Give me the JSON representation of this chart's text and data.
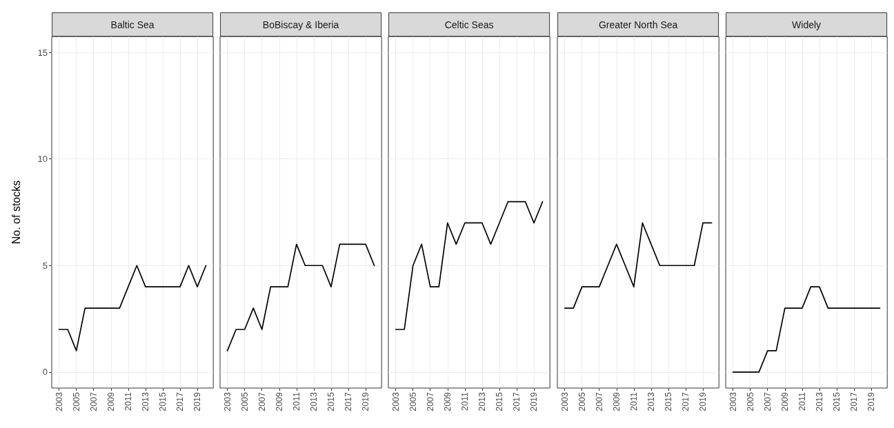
{
  "chart_data": [
    {
      "type": "line",
      "title": "Baltic Sea",
      "ylabel": "No. of stocks",
      "x": [
        2003,
        2004,
        2005,
        2006,
        2007,
        2008,
        2009,
        2010,
        2011,
        2012,
        2013,
        2014,
        2015,
        2016,
        2017,
        2018,
        2019,
        2020
      ],
      "values": [
        2,
        2,
        1,
        3,
        3,
        3,
        3,
        3,
        4,
        5,
        4,
        4,
        4,
        4,
        4,
        5,
        4,
        5
      ],
      "color": "#000000",
      "xlim": [
        2002.15,
        2020.85
      ],
      "xticks": [
        2003,
        2005,
        2007,
        2009,
        2011,
        2013,
        2015,
        2017,
        2019
      ],
      "ylim": [
        -0.75,
        15.75
      ],
      "yticks": [
        0,
        5,
        10,
        15
      ],
      "grid": true,
      "marker": "none"
    },
    {
      "type": "line",
      "title": "BoBiscay & Iberia",
      "x": [
        2003,
        2004,
        2005,
        2006,
        2007,
        2008,
        2009,
        2010,
        2011,
        2012,
        2013,
        2014,
        2015,
        2016,
        2017,
        2018,
        2019,
        2020
      ],
      "values": [
        1,
        2,
        2,
        3,
        2,
        4,
        4,
        4,
        6,
        5,
        5,
        5,
        4,
        6,
        6,
        6,
        6,
        5
      ],
      "color": "#000000",
      "xlim": [
        2002.15,
        2020.85
      ],
      "xticks": [
        2003,
        2005,
        2007,
        2009,
        2011,
        2013,
        2015,
        2017,
        2019
      ],
      "ylim": [
        -0.75,
        15.75
      ],
      "yticks": [
        0,
        5,
        10,
        15
      ],
      "grid": true,
      "marker": "none",
      "tick_labels": "x"
    },
    {
      "type": "line",
      "title": "Celtic Seas",
      "x": [
        2003,
        2004,
        2005,
        2006,
        2007,
        2008,
        2009,
        2010,
        2011,
        2012,
        2013,
        2014,
        2015,
        2016,
        2017,
        2018,
        2019,
        2020
      ],
      "values": [
        2,
        2,
        5,
        6,
        4,
        4,
        7,
        6,
        7,
        7,
        7,
        6,
        7,
        8,
        8,
        8,
        7,
        8
      ],
      "color": "#000000",
      "xlim": [
        2002.15,
        2020.85
      ],
      "xticks": [
        2003,
        2005,
        2007,
        2009,
        2011,
        2013,
        2015,
        2017,
        2019
      ],
      "ylim": [
        -0.75,
        15.75
      ],
      "yticks": [
        0,
        5,
        10,
        15
      ],
      "grid": true,
      "marker": "none",
      "tick_labels": "x"
    },
    {
      "type": "line",
      "title": "Greater North Sea",
      "x": [
        2003,
        2004,
        2005,
        2006,
        2007,
        2008,
        2009,
        2010,
        2011,
        2012,
        2013,
        2014,
        2015,
        2016,
        2017,
        2018,
        2019,
        2020
      ],
      "values": [
        3,
        3,
        4,
        4,
        4,
        5,
        6,
        5,
        4,
        7,
        6,
        5,
        5,
        5,
        5,
        5,
        7,
        7
      ],
      "color": "#000000",
      "xlim": [
        2002.15,
        2020.85
      ],
      "xticks": [
        2003,
        2005,
        2007,
        2009,
        2011,
        2013,
        2015,
        2017,
        2019
      ],
      "ylim": [
        -0.75,
        15.75
      ],
      "yticks": [
        0,
        5,
        10,
        15
      ],
      "grid": true,
      "marker": "none",
      "tick_labels": "x"
    },
    {
      "type": "line",
      "title": "Widely",
      "x": [
        2003,
        2004,
        2005,
        2006,
        2007,
        2008,
        2009,
        2010,
        2011,
        2012,
        2013,
        2014,
        2015,
        2016,
        2017,
        2018,
        2019,
        2020
      ],
      "values": [
        0,
        0,
        0,
        0,
        1,
        1,
        3,
        3,
        3,
        4,
        4,
        3,
        3,
        3,
        3,
        3,
        3,
        3
      ],
      "color": "#000000",
      "xlim": [
        2002.15,
        2020.85
      ],
      "xticks": [
        2003,
        2005,
        2007,
        2009,
        2011,
        2013,
        2015,
        2017,
        2019
      ],
      "ylim": [
        -0.75,
        15.75
      ],
      "yticks": [
        0,
        5,
        10,
        15
      ],
      "grid": true,
      "marker": "none",
      "tick_labels": "x"
    }
  ]
}
